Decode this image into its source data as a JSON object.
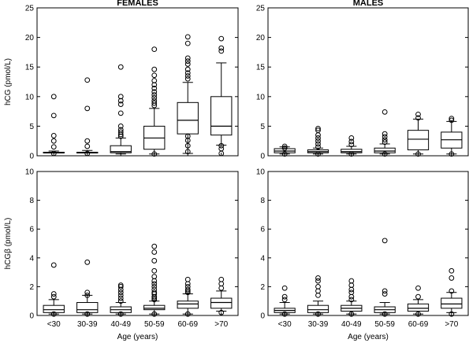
{
  "chart_data": [
    {
      "type": "boxplot",
      "title": "FEMALES",
      "ylabel": "hCG (pmol/L)",
      "xlabel": "",
      "ylim": [
        0,
        25
      ],
      "yticks": [
        "0",
        "5",
        "10",
        "15",
        "20",
        "25"
      ],
      "categories": [
        "<30",
        "30-39",
        "40-49",
        "50-59",
        "60-69",
        ">70"
      ],
      "boxes": [
        {
          "min": 0.5,
          "q1": 0.5,
          "median": 0.5,
          "q3": 0.6,
          "max": 0.8,
          "outliers": [
            10.0,
            6.8,
            3.4,
            2.5,
            1.5,
            0.4
          ]
        },
        {
          "min": 0.5,
          "q1": 0.5,
          "median": 0.5,
          "q3": 0.6,
          "max": 0.9,
          "outliers": [
            12.8,
            8.0,
            2.5,
            1.6,
            0.4
          ]
        },
        {
          "min": 0.3,
          "q1": 0.5,
          "median": 0.7,
          "q3": 1.7,
          "max": 3.0,
          "outliers": [
            15.0,
            10.0,
            9.3,
            8.7,
            7.2,
            5.0,
            4.4,
            4.0,
            3.6,
            3.3
          ]
        },
        {
          "min": 0.3,
          "q1": 1.1,
          "median": 3.0,
          "q3": 5.0,
          "max": 8.0,
          "outliers": [
            18.0,
            14.6,
            13.6,
            12.7,
            12.0,
            11.4,
            10.8,
            10.3,
            9.8,
            9.3,
            8.9,
            8.5,
            0.3
          ]
        },
        {
          "min": 0.4,
          "q1": 3.7,
          "median": 6.0,
          "q3": 9.0,
          "max": 12.4,
          "outliers": [
            20.1,
            19.0,
            16.5,
            16.0,
            15.5,
            14.6,
            14.0,
            13.5,
            13.0,
            3.3,
            2.6,
            1.7,
            0.7
          ]
        },
        {
          "min": 1.8,
          "q1": 3.5,
          "median": 5.0,
          "q3": 10.0,
          "max": 15.7,
          "outliers": [
            19.8,
            18.2,
            17.7,
            1.7,
            1.2,
            0.4
          ]
        }
      ]
    },
    {
      "type": "boxplot",
      "title": "MALES",
      "ylabel": "",
      "xlabel": "",
      "ylim": [
        0,
        25
      ],
      "yticks": [
        "0",
        "5",
        "10",
        "15",
        "20",
        "25"
      ],
      "categories": [
        "<30",
        "30-39",
        "40-49",
        "50-59",
        "60-69",
        ">70"
      ],
      "boxes": [
        {
          "min": 0.3,
          "q1": 0.5,
          "median": 0.8,
          "q3": 1.2,
          "max": 1.5,
          "outliers": [
            1.6,
            1.3,
            0.3
          ]
        },
        {
          "min": 0.3,
          "q1": 0.5,
          "median": 0.7,
          "q3": 1.0,
          "max": 1.3,
          "outliers": [
            4.6,
            4.3,
            3.5,
            3.0,
            2.5,
            2.0,
            1.5,
            0.3
          ]
        },
        {
          "min": 0.3,
          "q1": 0.5,
          "median": 0.7,
          "q3": 1.1,
          "max": 1.6,
          "outliers": [
            3.0,
            2.4,
            1.9,
            0.3
          ]
        },
        {
          "min": 0.3,
          "q1": 0.5,
          "median": 0.8,
          "q3": 1.3,
          "max": 2.0,
          "outliers": [
            7.4,
            3.7,
            3.2,
            2.7,
            2.3,
            0.3
          ]
        },
        {
          "min": 0.3,
          "q1": 1.0,
          "median": 2.8,
          "q3": 4.3,
          "max": 6.2,
          "outliers": [
            7.0,
            6.4,
            0.3
          ]
        },
        {
          "min": 0.3,
          "q1": 1.3,
          "median": 2.7,
          "q3": 4.0,
          "max": 5.8,
          "outliers": [
            6.3,
            6.0,
            0.3
          ]
        }
      ]
    },
    {
      "type": "boxplot",
      "title": "",
      "ylabel": "hCGβ (pmol/L)",
      "xlabel": "Age (years)",
      "ylim": [
        0,
        10
      ],
      "yticks": [
        "0",
        "2",
        "4",
        "6",
        "8",
        "10"
      ],
      "categories": [
        "<30",
        "30-39",
        "40-49",
        "50-59",
        "60-69",
        ">70"
      ],
      "boxes": [
        {
          "min": 0.1,
          "q1": 0.2,
          "median": 0.4,
          "q3": 0.7,
          "max": 1.1,
          "outliers": [
            3.5,
            1.5,
            1.3,
            0.1
          ]
        },
        {
          "min": 0.1,
          "q1": 0.2,
          "median": 0.4,
          "q3": 0.9,
          "max": 1.4,
          "outliers": [
            3.7,
            1.6,
            1.4,
            0.1
          ]
        },
        {
          "min": 0.1,
          "q1": 0.2,
          "median": 0.4,
          "q3": 0.6,
          "max": 0.9,
          "outliers": [
            2.1,
            2.0,
            1.8,
            1.6,
            1.4,
            1.2,
            1.0,
            0.1
          ]
        },
        {
          "min": 0.1,
          "q1": 0.4,
          "median": 0.5,
          "q3": 0.7,
          "max": 1.0,
          "outliers": [
            4.8,
            4.4,
            3.8,
            3.1,
            2.7,
            2.4,
            2.2,
            2.0,
            1.8,
            1.6,
            1.5,
            1.3,
            1.2,
            1.1,
            0.1
          ]
        },
        {
          "min": 0.1,
          "q1": 0.5,
          "median": 0.8,
          "q3": 1.0,
          "max": 1.5,
          "outliers": [
            2.5,
            2.2,
            2.0,
            1.8,
            1.7,
            1.6,
            0.1
          ]
        },
        {
          "min": 0.3,
          "q1": 0.5,
          "median": 0.9,
          "q3": 1.2,
          "max": 1.7,
          "outliers": [
            2.5,
            2.2,
            1.9,
            0.2
          ]
        }
      ]
    },
    {
      "type": "boxplot",
      "title": "",
      "ylabel": "",
      "xlabel": "Age (years)",
      "ylim": [
        0,
        10
      ],
      "yticks": [
        "0",
        "2",
        "4",
        "6",
        "8",
        "10"
      ],
      "categories": [
        "<30",
        "30-39",
        "40-49",
        "50-59",
        "60-69",
        ">70"
      ],
      "boxes": [
        {
          "min": 0.1,
          "q1": 0.2,
          "median": 0.35,
          "q3": 0.5,
          "max": 0.9,
          "outliers": [
            1.9,
            1.3,
            1.1,
            0.1
          ]
        },
        {
          "min": 0.1,
          "q1": 0.2,
          "median": 0.4,
          "q3": 0.7,
          "max": 1.0,
          "outliers": [
            2.6,
            2.4,
            2.0,
            1.7,
            1.4,
            0.1
          ]
        },
        {
          "min": 0.1,
          "q1": 0.3,
          "median": 0.5,
          "q3": 0.7,
          "max": 1.0,
          "outliers": [
            2.4,
            2.1,
            1.8,
            1.6,
            1.3,
            1.1,
            0.1
          ]
        },
        {
          "min": 0.1,
          "q1": 0.2,
          "median": 0.4,
          "q3": 0.6,
          "max": 0.9,
          "outliers": [
            5.2,
            1.7,
            1.5,
            0.1
          ]
        },
        {
          "min": 0.1,
          "q1": 0.3,
          "median": 0.5,
          "q3": 0.8,
          "max": 1.1,
          "outliers": [
            1.9,
            1.3,
            0.1
          ]
        },
        {
          "min": 0.2,
          "q1": 0.5,
          "median": 0.8,
          "q3": 1.2,
          "max": 1.6,
          "outliers": [
            3.1,
            2.6,
            1.7,
            0.1
          ]
        }
      ]
    }
  ]
}
